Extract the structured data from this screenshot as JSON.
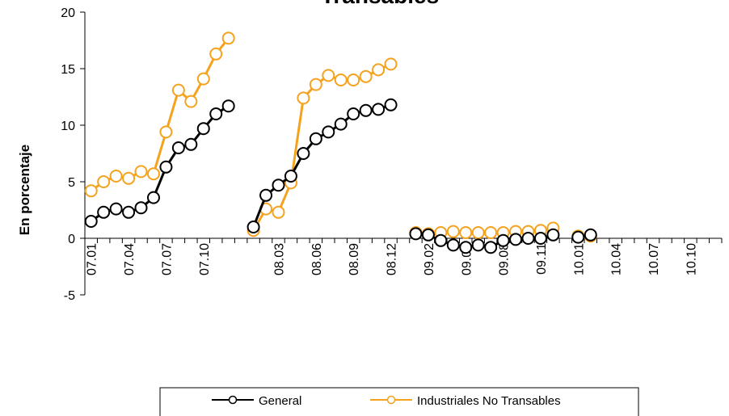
{
  "chart_data": {
    "type": "line",
    "title": "Transables",
    "y_label": "En porcentaje",
    "categories": [
      "07.01",
      null,
      null,
      "07.04",
      null,
      null,
      "07.07",
      null,
      null,
      "07.10",
      null,
      null,
      null,
      null,
      null,
      "08.03",
      null,
      null,
      "08.06",
      null,
      null,
      "08.09",
      null,
      null,
      "08.12",
      null,
      null,
      "09.02",
      null,
      null,
      "09.05",
      null,
      null,
      "09.08",
      null,
      null,
      "09.11",
      null,
      null,
      "10.01",
      null,
      null,
      "10.04",
      null,
      null,
      "10.07",
      null,
      null,
      "10.10",
      null,
      null
    ],
    "series": [
      {
        "name": "General",
        "color": "#000000",
        "values": [
          1.5,
          2.3,
          2.6,
          2.3,
          2.7,
          3.6,
          6.3,
          8.0,
          8.3,
          9.7,
          11.0,
          11.7,
          null,
          1.0,
          3.8,
          4.7,
          5.5,
          7.5,
          8.8,
          9.4,
          10.1,
          11.0,
          11.3,
          11.4,
          11.8,
          null,
          0.4,
          0.3,
          -0.2,
          -0.6,
          -0.8,
          -0.6,
          -0.8,
          -0.2,
          -0.1,
          0.0,
          0.0,
          0.3,
          null,
          0.1,
          0.3,
          null,
          null,
          null,
          null,
          null,
          null,
          null,
          null,
          null,
          null
        ]
      },
      {
        "name": "Industriales No Transables",
        "color": "#f5a21e",
        "values": [
          4.2,
          5.0,
          5.5,
          5.3,
          5.9,
          5.7,
          9.4,
          13.1,
          12.1,
          14.1,
          16.3,
          17.7,
          null,
          0.7,
          2.6,
          2.3,
          4.9,
          12.4,
          13.6,
          14.4,
          14.0,
          14.0,
          14.3,
          14.9,
          15.4,
          null,
          0.5,
          0.4,
          0.5,
          0.6,
          0.5,
          0.5,
          0.5,
          0.5,
          0.6,
          0.6,
          0.7,
          0.9,
          null,
          0.2,
          0.2,
          null,
          null,
          null,
          null,
          null,
          null,
          null,
          null,
          null,
          null
        ]
      }
    ],
    "ylim": [
      -5,
      20
    ],
    "yticks": [
      -5,
      0,
      5,
      10,
      15,
      20
    ],
    "grid": false
  }
}
